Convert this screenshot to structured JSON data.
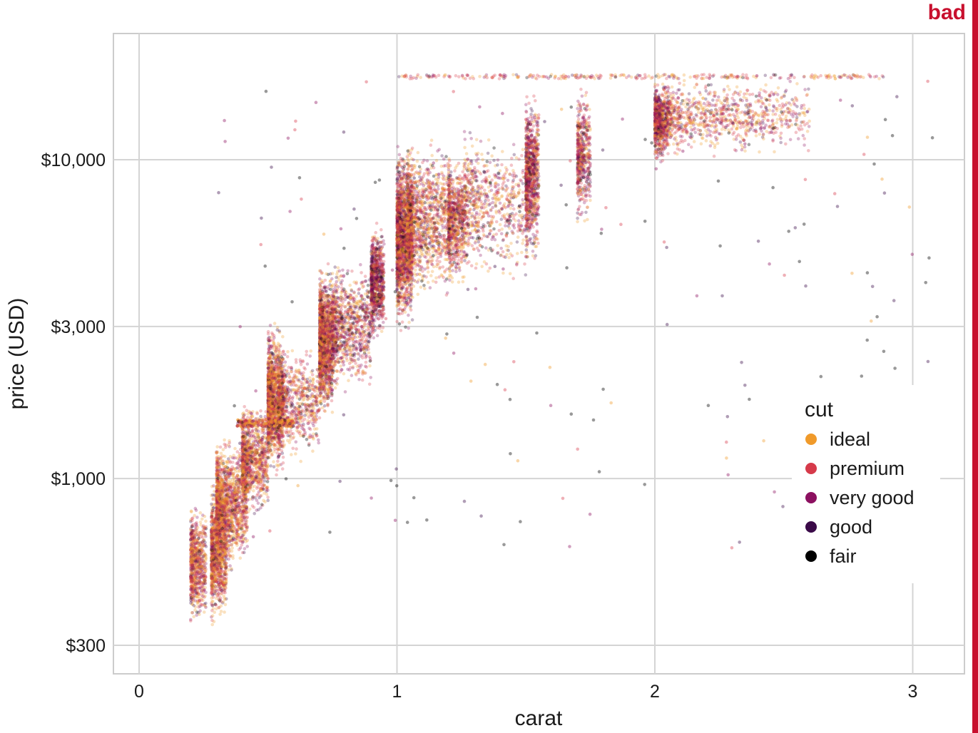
{
  "badge": {
    "text": "bad",
    "color": "#c8102e"
  },
  "chart_data": {
    "type": "scatter",
    "xlabel": "carat",
    "ylabel": "price (USD)",
    "x_scale": "linear",
    "y_scale": "log",
    "xlim": [
      -0.1,
      3.2
    ],
    "ylim": [
      275,
      23000
    ],
    "x_ticks": [
      0,
      1,
      2,
      3
    ],
    "x_tick_labels": [
      "0",
      "1",
      "2",
      "3"
    ],
    "y_ticks": [
      300,
      1000,
      3000,
      10000
    ],
    "y_tick_labels": [
      "$300",
      "$1,000",
      "$3,000",
      "$10,000"
    ],
    "grid": true,
    "legend": {
      "title": "cut",
      "position": "right",
      "items": [
        {
          "label": "ideal",
          "color": "#f09a2a"
        },
        {
          "label": "premium",
          "color": "#d63a4a"
        },
        {
          "label": "very good",
          "color": "#8c1060"
        },
        {
          "label": "good",
          "color": "#3a0a48"
        },
        {
          "label": "fair",
          "color": "#000000"
        }
      ]
    },
    "clusters": [
      {
        "carat": [
          0.2,
          0.26
        ],
        "price": [
          330,
          900
        ],
        "n": 700,
        "cut_weights": [
          0.4,
          0.3,
          0.2,
          0.08,
          0.02
        ]
      },
      {
        "carat": [
          0.28,
          0.34
        ],
        "price": [
          340,
          1000
        ],
        "n": 1000,
        "cut_weights": [
          0.45,
          0.28,
          0.18,
          0.07,
          0.02
        ]
      },
      {
        "carat": [
          0.3,
          0.42
        ],
        "price": [
          500,
          1400
        ],
        "n": 1400,
        "cut_weights": [
          0.45,
          0.3,
          0.18,
          0.05,
          0.02
        ]
      },
      {
        "carat": [
          0.4,
          0.5
        ],
        "price": [
          750,
          1750
        ],
        "n": 900,
        "cut_weights": [
          0.4,
          0.3,
          0.2,
          0.07,
          0.03
        ]
      },
      {
        "carat": [
          0.5,
          0.56
        ],
        "price": [
          1000,
          3200
        ],
        "n": 1400,
        "cut_weights": [
          0.45,
          0.28,
          0.17,
          0.07,
          0.03
        ]
      },
      {
        "carat": [
          0.54,
          0.7
        ],
        "price": [
          1100,
          2700
        ],
        "n": 700,
        "cut_weights": [
          0.35,
          0.3,
          0.22,
          0.09,
          0.04
        ]
      },
      {
        "carat": [
          0.7,
          0.75
        ],
        "price": [
          1500,
          4800
        ],
        "n": 1500,
        "cut_weights": [
          0.35,
          0.3,
          0.22,
          0.09,
          0.04
        ]
      },
      {
        "carat": [
          0.75,
          0.9
        ],
        "price": [
          1800,
          5000
        ],
        "n": 900,
        "cut_weights": [
          0.3,
          0.3,
          0.25,
          0.1,
          0.05
        ]
      },
      {
        "carat": [
          0.9,
          0.95
        ],
        "price": [
          2600,
          6500
        ],
        "n": 800,
        "cut_weights": [
          0.15,
          0.3,
          0.35,
          0.13,
          0.07
        ]
      },
      {
        "carat": [
          1.0,
          1.06
        ],
        "price": [
          2800,
          11500
        ],
        "n": 1800,
        "cut_weights": [
          0.3,
          0.32,
          0.22,
          0.1,
          0.06
        ]
      },
      {
        "carat": [
          1.04,
          1.2
        ],
        "price": [
          3500,
          12000
        ],
        "n": 1200,
        "cut_weights": [
          0.4,
          0.3,
          0.18,
          0.08,
          0.04
        ]
      },
      {
        "carat": [
          1.2,
          1.26
        ],
        "price": [
          3800,
          11000
        ],
        "n": 700,
        "cut_weights": [
          0.35,
          0.3,
          0.22,
          0.09,
          0.04
        ]
      },
      {
        "carat": [
          1.26,
          1.5
        ],
        "price": [
          4000,
          13000
        ],
        "n": 700,
        "cut_weights": [
          0.35,
          0.3,
          0.22,
          0.09,
          0.04
        ]
      },
      {
        "carat": [
          1.5,
          1.55
        ],
        "price": [
          4500,
          17500
        ],
        "n": 900,
        "cut_weights": [
          0.2,
          0.35,
          0.3,
          0.1,
          0.05
        ]
      },
      {
        "carat": [
          1.7,
          1.75
        ],
        "price": [
          6000,
          17500
        ],
        "n": 500,
        "cut_weights": [
          0.2,
          0.35,
          0.3,
          0.1,
          0.05
        ]
      },
      {
        "carat": [
          2.0,
          2.05
        ],
        "price": [
          9500,
          18500
        ],
        "n": 700,
        "cut_weights": [
          0.2,
          0.35,
          0.3,
          0.1,
          0.05
        ]
      },
      {
        "carat": [
          2.05,
          2.6
        ],
        "price": [
          10000,
          18500
        ],
        "n": 900,
        "cut_weights": [
          0.35,
          0.35,
          0.2,
          0.07,
          0.03
        ]
      }
    ],
    "cap_price": 18500,
    "shelf": {
      "price": 1500,
      "carat": [
        0.38,
        0.6
      ]
    }
  }
}
